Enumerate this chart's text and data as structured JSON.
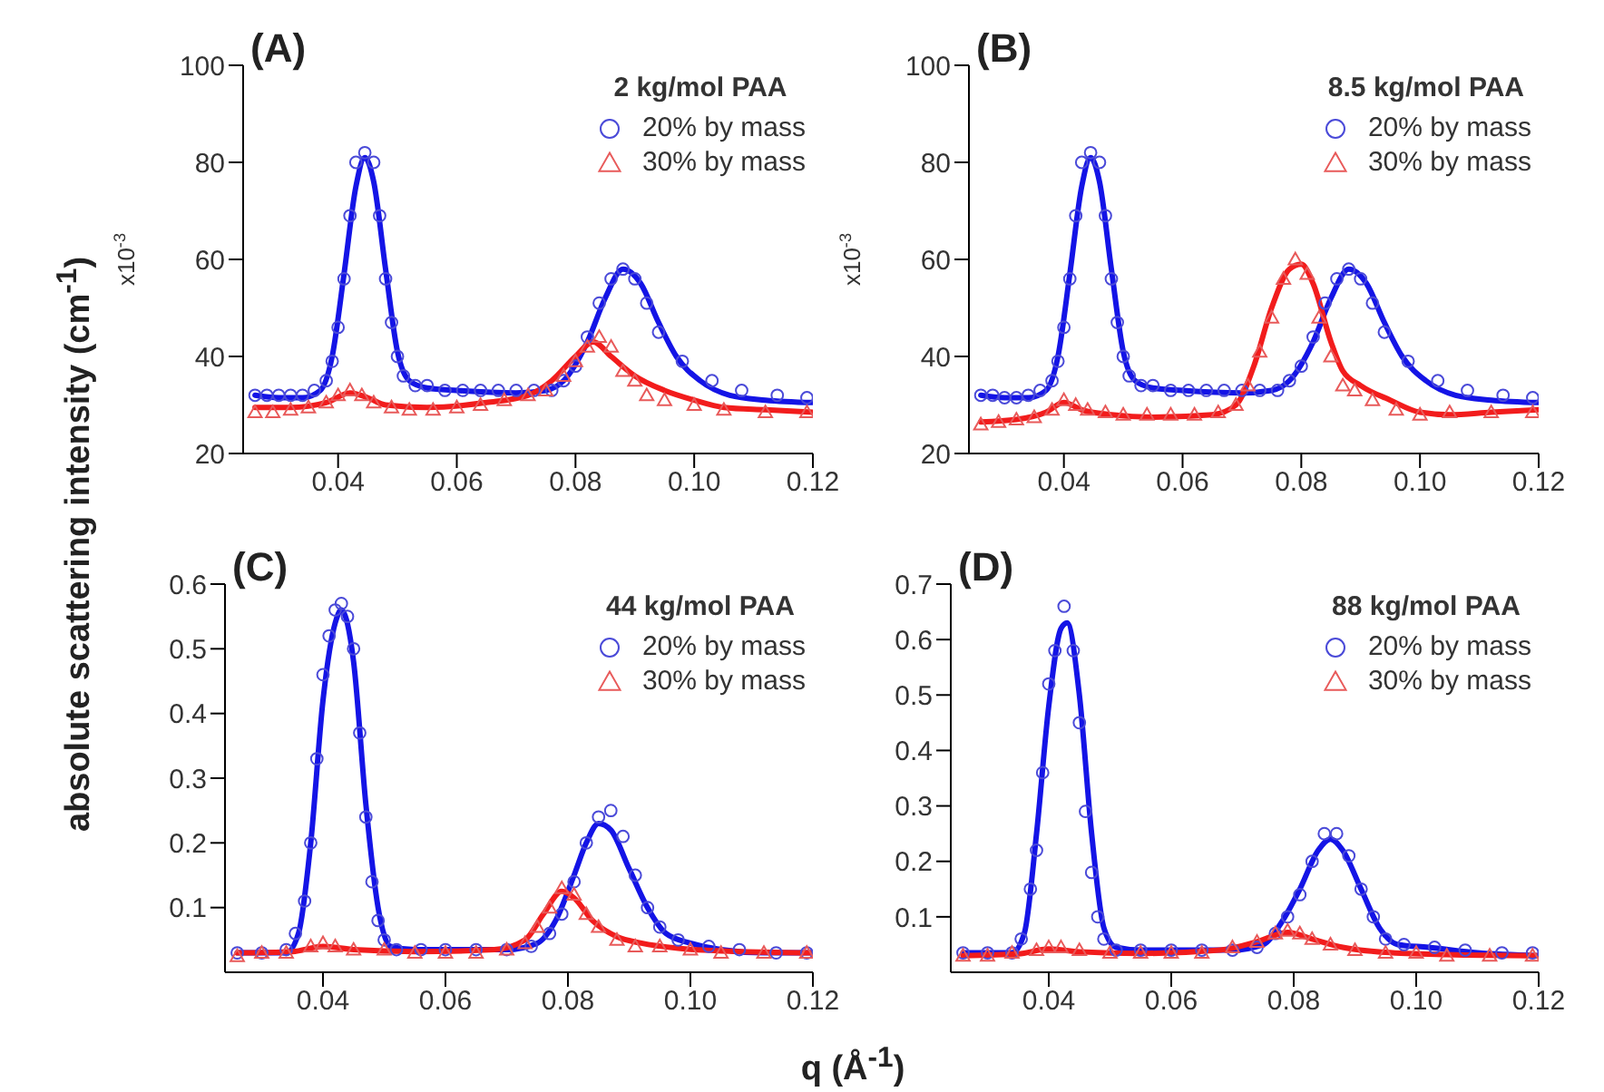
{
  "chart_data": [
    {
      "type": "scatter",
      "title": "(A)",
      "legend_title": "2 kg/mol PAA",
      "ylabel": "x10$^{-3}$",
      "legend": "top right",
      "xlim": [
        0.024,
        0.12
      ],
      "xticks": [
        {
          "value": 0.04,
          "label": "0.04"
        },
        {
          "value": 0.06,
          "label": "0.06"
        },
        {
          "value": 0.08,
          "label": "0.08"
        },
        {
          "value": 0.1,
          "label": "0.10"
        },
        {
          "value": 0.12,
          "label": "0.12"
        }
      ],
      "ylim": [
        20,
        100
      ],
      "yticks": [
        20,
        40,
        60,
        80,
        100
      ],
      "series": [
        {
          "name": "20% by mass",
          "type": "scatter",
          "marker": "circle",
          "color": "#4a4ad8",
          "x": [
            0.026,
            0.028,
            0.03,
            0.032,
            0.034,
            0.036,
            0.038,
            0.039,
            0.04,
            0.041,
            0.042,
            0.043,
            0.0445,
            0.046,
            0.047,
            0.048,
            0.049,
            0.05,
            0.051,
            0.053,
            0.055,
            0.058,
            0.061,
            0.064,
            0.067,
            0.07,
            0.073,
            0.076,
            0.078,
            0.08,
            0.082,
            0.084,
            0.086,
            0.088,
            0.09,
            0.092,
            0.094,
            0.098,
            0.103,
            0.108,
            0.114,
            0.119
          ],
          "values": [
            32,
            32,
            32,
            32,
            32,
            33,
            35,
            39,
            46,
            56,
            69,
            80,
            82,
            80,
            69,
            56,
            47,
            40,
            36,
            34,
            34,
            33,
            33,
            33,
            33,
            33,
            33,
            33,
            35,
            38,
            44,
            51,
            56,
            58,
            56,
            51,
            45,
            39,
            35,
            33,
            32,
            31.5
          ]
        },
        {
          "name": "30% by mass",
          "type": "scatter",
          "marker": "triangle",
          "color": "#e85a5a",
          "x": [
            0.026,
            0.029,
            0.032,
            0.035,
            0.038,
            0.04,
            0.042,
            0.044,
            0.046,
            0.049,
            0.052,
            0.056,
            0.06,
            0.064,
            0.068,
            0.072,
            0.075,
            0.078,
            0.08,
            0.082,
            0.084,
            0.086,
            0.088,
            0.09,
            0.092,
            0.095,
            0.1,
            0.105,
            0.112,
            0.119
          ],
          "values": [
            28.5,
            28.5,
            29,
            29.5,
            30.5,
            32,
            33,
            32,
            30.5,
            29.5,
            29,
            29,
            29.5,
            30,
            31,
            32,
            33,
            36,
            39,
            42,
            44,
            42,
            37,
            35,
            32,
            31,
            30,
            29,
            28.5,
            28.5
          ]
        },
        {
          "type": "line",
          "color": "#1414e6",
          "x": [
            0.026,
            0.03,
            0.034,
            0.037,
            0.039,
            0.041,
            0.043,
            0.0445,
            0.046,
            0.048,
            0.05,
            0.052,
            0.055,
            0.06,
            0.07,
            0.075,
            0.078,
            0.082,
            0.085,
            0.088,
            0.091,
            0.094,
            0.097,
            0.101,
            0.106,
            0.112,
            0.12
          ],
          "values": [
            32,
            31.5,
            31.5,
            33,
            40,
            57,
            75,
            81,
            76,
            58,
            41,
            35,
            33.5,
            33,
            32.5,
            33,
            35,
            43,
            52,
            58,
            55,
            47,
            40,
            35,
            32,
            31,
            30.5
          ]
        },
        {
          "type": "line",
          "color": "#f21c1c",
          "x": [
            0.026,
            0.032,
            0.038,
            0.042,
            0.045,
            0.048,
            0.055,
            0.065,
            0.072,
            0.076,
            0.08,
            0.083,
            0.086,
            0.09,
            0.095,
            0.1,
            0.105,
            0.112,
            0.12
          ],
          "values": [
            29.5,
            29.5,
            30.5,
            32.5,
            31.5,
            30,
            29.5,
            30.5,
            32,
            35,
            40,
            43,
            40,
            36,
            33,
            31,
            29.5,
            29,
            28.5
          ]
        }
      ]
    },
    {
      "type": "scatter",
      "title": "(B)",
      "legend_title": "8.5 kg/mol PAA",
      "ylabel": "x10$^{-3}$",
      "legend": "top right",
      "xlim": [
        0.024,
        0.12
      ],
      "xticks": [
        {
          "value": 0.04,
          "label": "0.04"
        },
        {
          "value": 0.06,
          "label": "0.06"
        },
        {
          "value": 0.08,
          "label": "0.08"
        },
        {
          "value": 0.1,
          "label": "0.10"
        },
        {
          "value": 0.12,
          "label": "0.12"
        }
      ],
      "ylim": [
        20,
        100
      ],
      "yticks": [
        20,
        40,
        60,
        80,
        100
      ],
      "series": [
        {
          "name": "20% by mass",
          "type": "scatter",
          "marker": "circle",
          "color": "#4a4ad8",
          "x": [
            0.026,
            0.028,
            0.03,
            0.032,
            0.034,
            0.036,
            0.038,
            0.039,
            0.04,
            0.041,
            0.042,
            0.043,
            0.0445,
            0.046,
            0.047,
            0.048,
            0.049,
            0.05,
            0.051,
            0.053,
            0.055,
            0.058,
            0.061,
            0.064,
            0.067,
            0.07,
            0.073,
            0.076,
            0.078,
            0.08,
            0.082,
            0.084,
            0.086,
            0.088,
            0.09,
            0.092,
            0.094,
            0.098,
            0.103,
            0.108,
            0.114,
            0.119
          ],
          "values": [
            32,
            32,
            31.5,
            31.5,
            32,
            33,
            35,
            39,
            46,
            56,
            69,
            80,
            82,
            80,
            69,
            56,
            47,
            40,
            36,
            34,
            34,
            33,
            33,
            33,
            33,
            33,
            33,
            33,
            35,
            38,
            44,
            51,
            56,
            58,
            56,
            51,
            45,
            39,
            35,
            33,
            32,
            31.5
          ]
        },
        {
          "name": "30% by mass",
          "type": "scatter",
          "marker": "triangle",
          "color": "#e85a5a",
          "x": [
            0.026,
            0.029,
            0.032,
            0.035,
            0.038,
            0.04,
            0.042,
            0.044,
            0.047,
            0.05,
            0.054,
            0.058,
            0.062,
            0.066,
            0.069,
            0.071,
            0.073,
            0.075,
            0.077,
            0.079,
            0.081,
            0.083,
            0.085,
            0.087,
            0.089,
            0.092,
            0.096,
            0.1,
            0.105,
            0.112,
            0.119
          ],
          "values": [
            26,
            26.5,
            27,
            27.5,
            29,
            31,
            30,
            29,
            28.5,
            28,
            28,
            28,
            28,
            28.5,
            30,
            34,
            41,
            48,
            56,
            60,
            57,
            48,
            40,
            34,
            33,
            31,
            29,
            28,
            28.5,
            28.5,
            28.5
          ]
        },
        {
          "type": "line",
          "color": "#1414e6",
          "x": [
            0.026,
            0.03,
            0.034,
            0.037,
            0.039,
            0.041,
            0.043,
            0.0445,
            0.046,
            0.048,
            0.05,
            0.052,
            0.055,
            0.06,
            0.07,
            0.075,
            0.078,
            0.082,
            0.085,
            0.088,
            0.091,
            0.094,
            0.097,
            0.101,
            0.106,
            0.112,
            0.12
          ],
          "values": [
            32,
            31.5,
            31.5,
            33,
            40,
            57,
            75,
            81,
            76,
            58,
            41,
            35,
            33.5,
            33,
            32.5,
            33,
            35,
            43,
            52,
            58,
            55,
            47,
            40,
            35,
            32,
            31,
            30.5
          ]
        },
        {
          "type": "line",
          "color": "#f21c1c",
          "x": [
            0.026,
            0.032,
            0.037,
            0.04,
            0.043,
            0.048,
            0.055,
            0.065,
            0.069,
            0.072,
            0.075,
            0.078,
            0.08,
            0.082,
            0.085,
            0.087,
            0.09,
            0.095,
            0.1,
            0.105,
            0.112,
            0.12
          ],
          "values": [
            26.5,
            27,
            28.5,
            30.5,
            29,
            28,
            27.5,
            28,
            30,
            38,
            50,
            58,
            59,
            55,
            43,
            37,
            34,
            31,
            28.5,
            28,
            28.5,
            29
          ]
        }
      ]
    },
    {
      "type": "scatter",
      "title": "(C)",
      "legend_title": "44 kg/mol PAA",
      "ylabel": "absolute scattering intensity (cm$^{-1}$)",
      "xlabel": "q (Å$^{-1}$)",
      "legend": "top right",
      "xlim": [
        0.024,
        0.12
      ],
      "xticks": [
        {
          "value": 0.04,
          "label": "0.04"
        },
        {
          "value": 0.06,
          "label": "0.06"
        },
        {
          "value": 0.08,
          "label": "0.08"
        },
        {
          "value": 0.1,
          "label": "0.10"
        },
        {
          "value": 0.12,
          "label": "0.12"
        }
      ],
      "ylim": [
        0,
        0.6
      ],
      "yticks": [
        0.1,
        0.2,
        0.3,
        0.4,
        0.5,
        0.6
      ],
      "series": [
        {
          "name": "20% by mass",
          "type": "scatter",
          "marker": "circle",
          "color": "#4a4ad8",
          "x": [
            0.026,
            0.03,
            0.034,
            0.0355,
            0.037,
            0.038,
            0.039,
            0.04,
            0.041,
            0.042,
            0.043,
            0.044,
            0.045,
            0.046,
            0.047,
            0.048,
            0.049,
            0.05,
            0.052,
            0.056,
            0.06,
            0.065,
            0.07,
            0.074,
            0.077,
            0.079,
            0.081,
            0.083,
            0.085,
            0.087,
            0.089,
            0.091,
            0.093,
            0.095,
            0.098,
            0.103,
            0.108,
            0.114,
            0.119
          ],
          "values": [
            0.03,
            0.03,
            0.035,
            0.06,
            0.11,
            0.2,
            0.33,
            0.46,
            0.52,
            0.56,
            0.57,
            0.55,
            0.5,
            0.37,
            0.24,
            0.14,
            0.08,
            0.05,
            0.035,
            0.035,
            0.035,
            0.035,
            0.035,
            0.04,
            0.06,
            0.09,
            0.14,
            0.2,
            0.24,
            0.25,
            0.21,
            0.15,
            0.1,
            0.07,
            0.05,
            0.04,
            0.035,
            0.03,
            0.03
          ]
        },
        {
          "name": "30% by mass",
          "type": "scatter",
          "marker": "triangle",
          "color": "#e85a5a",
          "x": [
            0.026,
            0.03,
            0.034,
            0.038,
            0.04,
            0.042,
            0.045,
            0.05,
            0.055,
            0.06,
            0.065,
            0.07,
            0.073,
            0.075,
            0.077,
            0.079,
            0.081,
            0.083,
            0.085,
            0.088,
            0.091,
            0.095,
            0.1,
            0.105,
            0.112,
            0.119
          ],
          "values": [
            0.025,
            0.03,
            0.03,
            0.04,
            0.045,
            0.04,
            0.035,
            0.035,
            0.03,
            0.03,
            0.03,
            0.035,
            0.045,
            0.07,
            0.1,
            0.13,
            0.12,
            0.09,
            0.07,
            0.05,
            0.04,
            0.04,
            0.035,
            0.03,
            0.03,
            0.03
          ]
        },
        {
          "type": "line",
          "color": "#1414e6",
          "x": [
            0.026,
            0.034,
            0.036,
            0.038,
            0.04,
            0.042,
            0.043,
            0.045,
            0.047,
            0.049,
            0.051,
            0.055,
            0.07,
            0.075,
            0.078,
            0.081,
            0.083,
            0.085,
            0.087,
            0.09,
            0.093,
            0.096,
            0.1,
            0.105,
            0.112,
            0.12
          ],
          "values": [
            0.03,
            0.03,
            0.06,
            0.2,
            0.42,
            0.54,
            0.56,
            0.48,
            0.26,
            0.1,
            0.04,
            0.035,
            0.035,
            0.045,
            0.08,
            0.15,
            0.2,
            0.23,
            0.22,
            0.16,
            0.1,
            0.06,
            0.045,
            0.035,
            0.03,
            0.03
          ]
        },
        {
          "type": "line",
          "color": "#f21c1c",
          "x": [
            0.026,
            0.035,
            0.04,
            0.045,
            0.055,
            0.068,
            0.073,
            0.076,
            0.079,
            0.081,
            0.084,
            0.088,
            0.092,
            0.098,
            0.105,
            0.12
          ],
          "values": [
            0.03,
            0.032,
            0.04,
            0.035,
            0.032,
            0.035,
            0.05,
            0.09,
            0.125,
            0.115,
            0.08,
            0.055,
            0.045,
            0.037,
            0.033,
            0.03
          ]
        }
      ]
    },
    {
      "type": "scatter",
      "title": "(D)",
      "legend_title": "88 kg/mol PAA",
      "legend": "top right",
      "xlim": [
        0.024,
        0.12
      ],
      "xticks": [
        {
          "value": 0.04,
          "label": "0.04"
        },
        {
          "value": 0.06,
          "label": "0.06"
        },
        {
          "value": 0.08,
          "label": "0.08"
        },
        {
          "value": 0.1,
          "label": "0.10"
        },
        {
          "value": 0.12,
          "label": "0.12"
        }
      ],
      "ylim": [
        0,
        0.7
      ],
      "yticks": [
        0.1,
        0.2,
        0.3,
        0.4,
        0.5,
        0.6,
        0.7
      ],
      "series": [
        {
          "name": "20% by mass",
          "type": "scatter",
          "marker": "circle",
          "color": "#4a4ad8",
          "x": [
            0.026,
            0.03,
            0.034,
            0.0355,
            0.037,
            0.038,
            0.039,
            0.04,
            0.041,
            0.0425,
            0.044,
            0.045,
            0.046,
            0.047,
            0.048,
            0.049,
            0.051,
            0.055,
            0.06,
            0.065,
            0.07,
            0.074,
            0.077,
            0.079,
            0.081,
            0.083,
            0.085,
            0.087,
            0.089,
            0.091,
            0.093,
            0.095,
            0.098,
            0.103,
            0.108,
            0.114,
            0.119
          ],
          "values": [
            0.035,
            0.035,
            0.035,
            0.06,
            0.15,
            0.22,
            0.36,
            0.52,
            0.58,
            0.66,
            0.58,
            0.45,
            0.29,
            0.18,
            0.1,
            0.06,
            0.04,
            0.04,
            0.04,
            0.04,
            0.04,
            0.045,
            0.07,
            0.1,
            0.14,
            0.2,
            0.25,
            0.25,
            0.21,
            0.15,
            0.1,
            0.06,
            0.05,
            0.045,
            0.04,
            0.035,
            0.035
          ]
        },
        {
          "name": "30% by mass",
          "type": "scatter",
          "marker": "triangle",
          "color": "#e85a5a",
          "x": [
            0.026,
            0.03,
            0.034,
            0.038,
            0.04,
            0.042,
            0.045,
            0.05,
            0.055,
            0.06,
            0.065,
            0.07,
            0.074,
            0.077,
            0.079,
            0.081,
            0.083,
            0.086,
            0.09,
            0.095,
            0.1,
            0.105,
            0.112,
            0.119
          ],
          "values": [
            0.03,
            0.03,
            0.035,
            0.04,
            0.045,
            0.045,
            0.04,
            0.035,
            0.035,
            0.035,
            0.035,
            0.045,
            0.055,
            0.07,
            0.075,
            0.07,
            0.06,
            0.05,
            0.04,
            0.035,
            0.035,
            0.03,
            0.03,
            0.03
          ]
        },
        {
          "type": "line",
          "color": "#1414e6",
          "x": [
            0.026,
            0.034,
            0.036,
            0.038,
            0.04,
            0.042,
            0.043,
            0.045,
            0.047,
            0.049,
            0.051,
            0.055,
            0.07,
            0.075,
            0.078,
            0.081,
            0.084,
            0.086,
            0.088,
            0.091,
            0.094,
            0.097,
            0.102,
            0.11,
            0.12
          ],
          "values": [
            0.035,
            0.035,
            0.07,
            0.25,
            0.48,
            0.62,
            0.63,
            0.5,
            0.25,
            0.08,
            0.045,
            0.04,
            0.04,
            0.05,
            0.09,
            0.15,
            0.22,
            0.24,
            0.22,
            0.15,
            0.08,
            0.05,
            0.045,
            0.035,
            0.03
          ]
        },
        {
          "type": "line",
          "color": "#f21c1c",
          "x": [
            0.026,
            0.035,
            0.04,
            0.045,
            0.055,
            0.068,
            0.074,
            0.079,
            0.083,
            0.088,
            0.095,
            0.105,
            0.12
          ],
          "values": [
            0.03,
            0.033,
            0.042,
            0.037,
            0.034,
            0.04,
            0.055,
            0.072,
            0.06,
            0.045,
            0.036,
            0.032,
            0.03
          ]
        }
      ]
    }
  ]
}
